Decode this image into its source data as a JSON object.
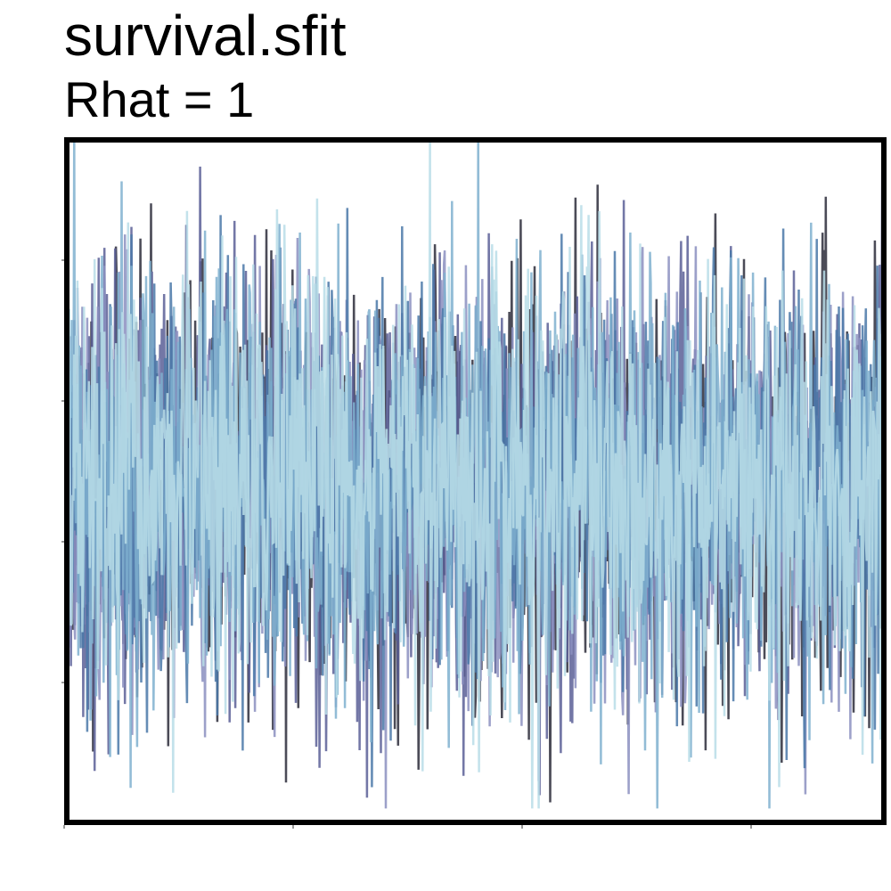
{
  "chart_data": {
    "type": "line",
    "title": "survival.sfit",
    "subtitle": "Rhat = 1",
    "xlabel": "",
    "ylabel": "",
    "axis_tick_labels_shown": false,
    "grid": false,
    "legend": "none",
    "ylim": [
      -2.7,
      2.2
    ],
    "xlim": [
      0,
      1000
    ],
    "n_iterations": 1000,
    "colors": [
      "#2b2b3a",
      "#5a5f96",
      "#8b8fc0",
      "#4a78a8",
      "#7fb0cf",
      "#b9dde8"
    ],
    "series": [
      {
        "seed": 11,
        "color_index": 0
      },
      {
        "seed": 23,
        "color_index": 1
      },
      {
        "seed": 37,
        "color_index": 2
      },
      {
        "seed": 41,
        "color_index": 3
      },
      {
        "seed": 59,
        "color_index": 4
      },
      {
        "seed": 67,
        "color_index": 5
      }
    ]
  }
}
